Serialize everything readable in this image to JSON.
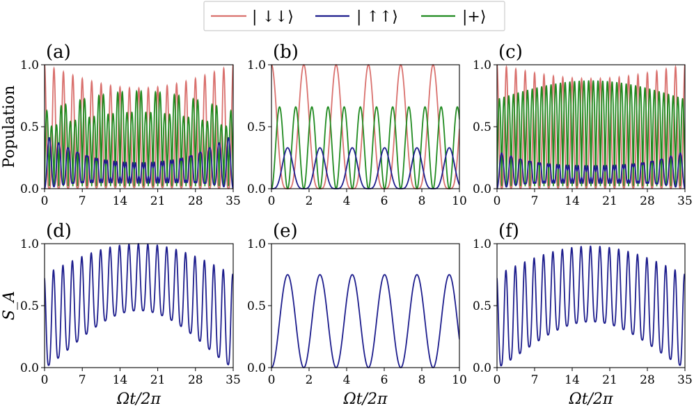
{
  "legend": {
    "entries": [
      {
        "label": "| ↓↓⟩",
        "color": "#d9706d"
      },
      {
        "label": "| ↑↑⟩",
        "color": "#1c1c8c"
      },
      {
        "label": "|+⟩",
        "color": "#1f8a1f"
      }
    ]
  },
  "chart_data": [
    {
      "panel": "(a)",
      "type": "line",
      "ylabel": "Population",
      "xlabel": "",
      "xlim": [
        0,
        35
      ],
      "ylim": [
        0,
        1
      ],
      "xticks": [
        "0",
        "7",
        "14",
        "21",
        "28",
        "35"
      ],
      "yticks": [
        "0.0",
        "0.5",
        "1.0"
      ],
      "series": [
        {
          "name": "| ↓↓⟩",
          "period": 1.75,
          "min_pattern": "beat",
          "amp_edge": 1.0,
          "amp_mid": 0.8
        },
        {
          "name": "| ↑↑⟩",
          "peak_edge": 0.36,
          "peak_mid": 0.2
        },
        {
          "name": "|+⟩",
          "peak_edge": 0.63,
          "peak_mid": 0.8
        }
      ]
    },
    {
      "panel": "(b)",
      "type": "line",
      "ylabel": "",
      "xlabel": "",
      "xlim": [
        0,
        10
      ],
      "ylim": [
        0,
        1
      ],
      "xticks": [
        "0",
        "2",
        "4",
        "6",
        "8",
        "10"
      ],
      "yticks": [
        "0.0",
        "0.5",
        "1.0"
      ],
      "series": [
        {
          "name": "| ↓↓⟩",
          "period": 1.72,
          "max": 1.0,
          "min": 0.0
        },
        {
          "name": "| ↑↑⟩",
          "period": 1.72,
          "max": 0.33
        },
        {
          "name": "|+⟩",
          "period": 1.72,
          "max": 0.66
        }
      ]
    },
    {
      "panel": "(c)",
      "type": "line",
      "ylabel": "",
      "xlabel": "",
      "xlim": [
        0,
        35
      ],
      "ylim": [
        0,
        1
      ],
      "xticks": [
        "0",
        "7",
        "14",
        "21",
        "28",
        "35"
      ],
      "yticks": [
        "0.0",
        "0.5",
        "1.0"
      ],
      "series": [
        {
          "name": "| ↓↓⟩",
          "period": 1.75,
          "amp_edge": 1.0,
          "amp_mid": 0.88
        },
        {
          "name": "| ↑↑⟩",
          "peak_edge": 0.3,
          "peak_mid": 0.18
        },
        {
          "name": "|+⟩",
          "peak_edge": 0.7,
          "peak_mid": 0.85
        }
      ]
    },
    {
      "panel": "(d)",
      "type": "line",
      "ylabel": "S_A",
      "xlabel": "Ωt/2π",
      "xlim": [
        0,
        35
      ],
      "ylim": [
        0,
        1
      ],
      "xticks": [
        "0",
        "7",
        "14",
        "21",
        "28",
        "35"
      ],
      "yticks": [
        "0.0",
        "0.5",
        "1.0"
      ],
      "series": [
        {
          "name": "S_A",
          "period": 1.75,
          "peak_edge": 0.75,
          "peak_mid": 1.0,
          "trough_mid": 0.46
        }
      ]
    },
    {
      "panel": "(e)",
      "type": "line",
      "ylabel": "",
      "xlabel": "Ωt/2π",
      "xlim": [
        0,
        10
      ],
      "ylim": [
        0,
        1
      ],
      "xticks": [
        "0",
        "2",
        "4",
        "6",
        "8",
        "10"
      ],
      "yticks": [
        "0.0",
        "0.5",
        "1.0"
      ],
      "series": [
        {
          "name": "S_A",
          "period": 1.72,
          "max": 0.75,
          "min": 0.0
        }
      ]
    },
    {
      "panel": "(f)",
      "type": "line",
      "ylabel": "",
      "xlabel": "Ωt/2π",
      "xlim": [
        0,
        35
      ],
      "ylim": [
        0,
        1
      ],
      "xticks": [
        "0",
        "7",
        "14",
        "21",
        "28",
        "35"
      ],
      "yticks": [
        "0.0",
        "0.5",
        "1.0"
      ],
      "series": [
        {
          "name": "S_A",
          "period": 1.75,
          "peak_edge": 0.75,
          "peak_mid": 0.98,
          "trough_mid": 0.37
        }
      ]
    }
  ],
  "colors": {
    "down": "#d9706d",
    "up": "#1c1c8c",
    "plus": "#1f8a1f",
    "sa": "#1c1c8c"
  }
}
